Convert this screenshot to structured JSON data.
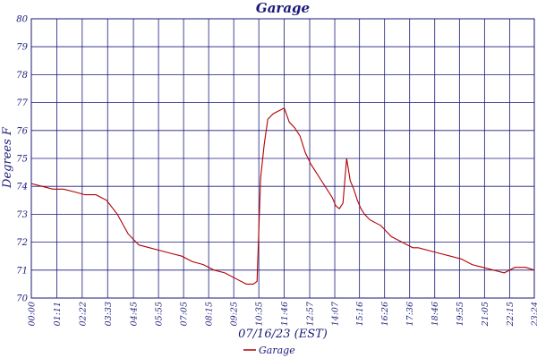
{
  "chart_data": {
    "type": "line",
    "title": "Garage",
    "xlabel": "07/16/23 (EST)",
    "ylabel": "Degrees F",
    "ylim": [
      70,
      80
    ],
    "yticks": [
      "70",
      "71",
      "72",
      "73",
      "74",
      "75",
      "76",
      "77",
      "78",
      "79",
      "80"
    ],
    "xlim": [
      "00:00",
      "23:24"
    ],
    "xticks": [
      "00:00",
      "01:11",
      "02:22",
      "03:33",
      "04:45",
      "05:55",
      "07:05",
      "08:15",
      "09:25",
      "10:35",
      "11:46",
      "12:57",
      "14:07",
      "15:16",
      "16:26",
      "17:36",
      "18:46",
      "19:55",
      "21:05",
      "22:15",
      "23:24"
    ],
    "grid": true,
    "legend_position": "bottom-center",
    "colors": {
      "series": "#b30000",
      "grid": "#1a1a7a",
      "text": "#1a1a7a"
    },
    "series": [
      {
        "name": "Garage",
        "x": [
          "00:00",
          "00:30",
          "01:00",
          "01:30",
          "02:00",
          "02:30",
          "03:00",
          "03:30",
          "04:00",
          "04:30",
          "05:00",
          "05:30",
          "06:00",
          "06:30",
          "07:00",
          "07:30",
          "08:00",
          "08:30",
          "09:00",
          "09:30",
          "10:00",
          "10:20",
          "10:30",
          "10:40",
          "10:50",
          "11:00",
          "11:15",
          "11:30",
          "11:46",
          "12:00",
          "12:15",
          "12:30",
          "12:45",
          "13:00",
          "13:15",
          "13:30",
          "13:45",
          "14:00",
          "14:10",
          "14:20",
          "14:30",
          "14:40",
          "14:50",
          "15:00",
          "15:10",
          "15:20",
          "15:30",
          "15:45",
          "16:00",
          "16:15",
          "16:30",
          "16:45",
          "17:00",
          "17:15",
          "17:30",
          "17:45",
          "18:00",
          "18:30",
          "19:00",
          "19:30",
          "20:00",
          "20:30",
          "21:00",
          "21:30",
          "22:00",
          "22:30",
          "23:00",
          "23:24"
        ],
        "y": [
          74.1,
          74.0,
          73.9,
          73.9,
          73.8,
          73.7,
          73.7,
          73.5,
          73.0,
          72.3,
          71.9,
          71.8,
          71.7,
          71.6,
          71.5,
          71.3,
          71.2,
          71.0,
          70.9,
          70.7,
          70.5,
          70.5,
          70.6,
          74.3,
          75.5,
          76.4,
          76.6,
          76.7,
          76.8,
          76.3,
          76.1,
          75.8,
          75.2,
          74.8,
          74.5,
          74.2,
          73.9,
          73.6,
          73.3,
          73.2,
          73.4,
          75.0,
          74.2,
          73.9,
          73.5,
          73.2,
          73.0,
          72.8,
          72.7,
          72.6,
          72.4,
          72.2,
          72.1,
          72.0,
          71.9,
          71.8,
          71.8,
          71.7,
          71.6,
          71.5,
          71.4,
          71.2,
          71.1,
          71.0,
          70.9,
          71.1,
          71.1,
          71.0
        ]
      }
    ]
  }
}
